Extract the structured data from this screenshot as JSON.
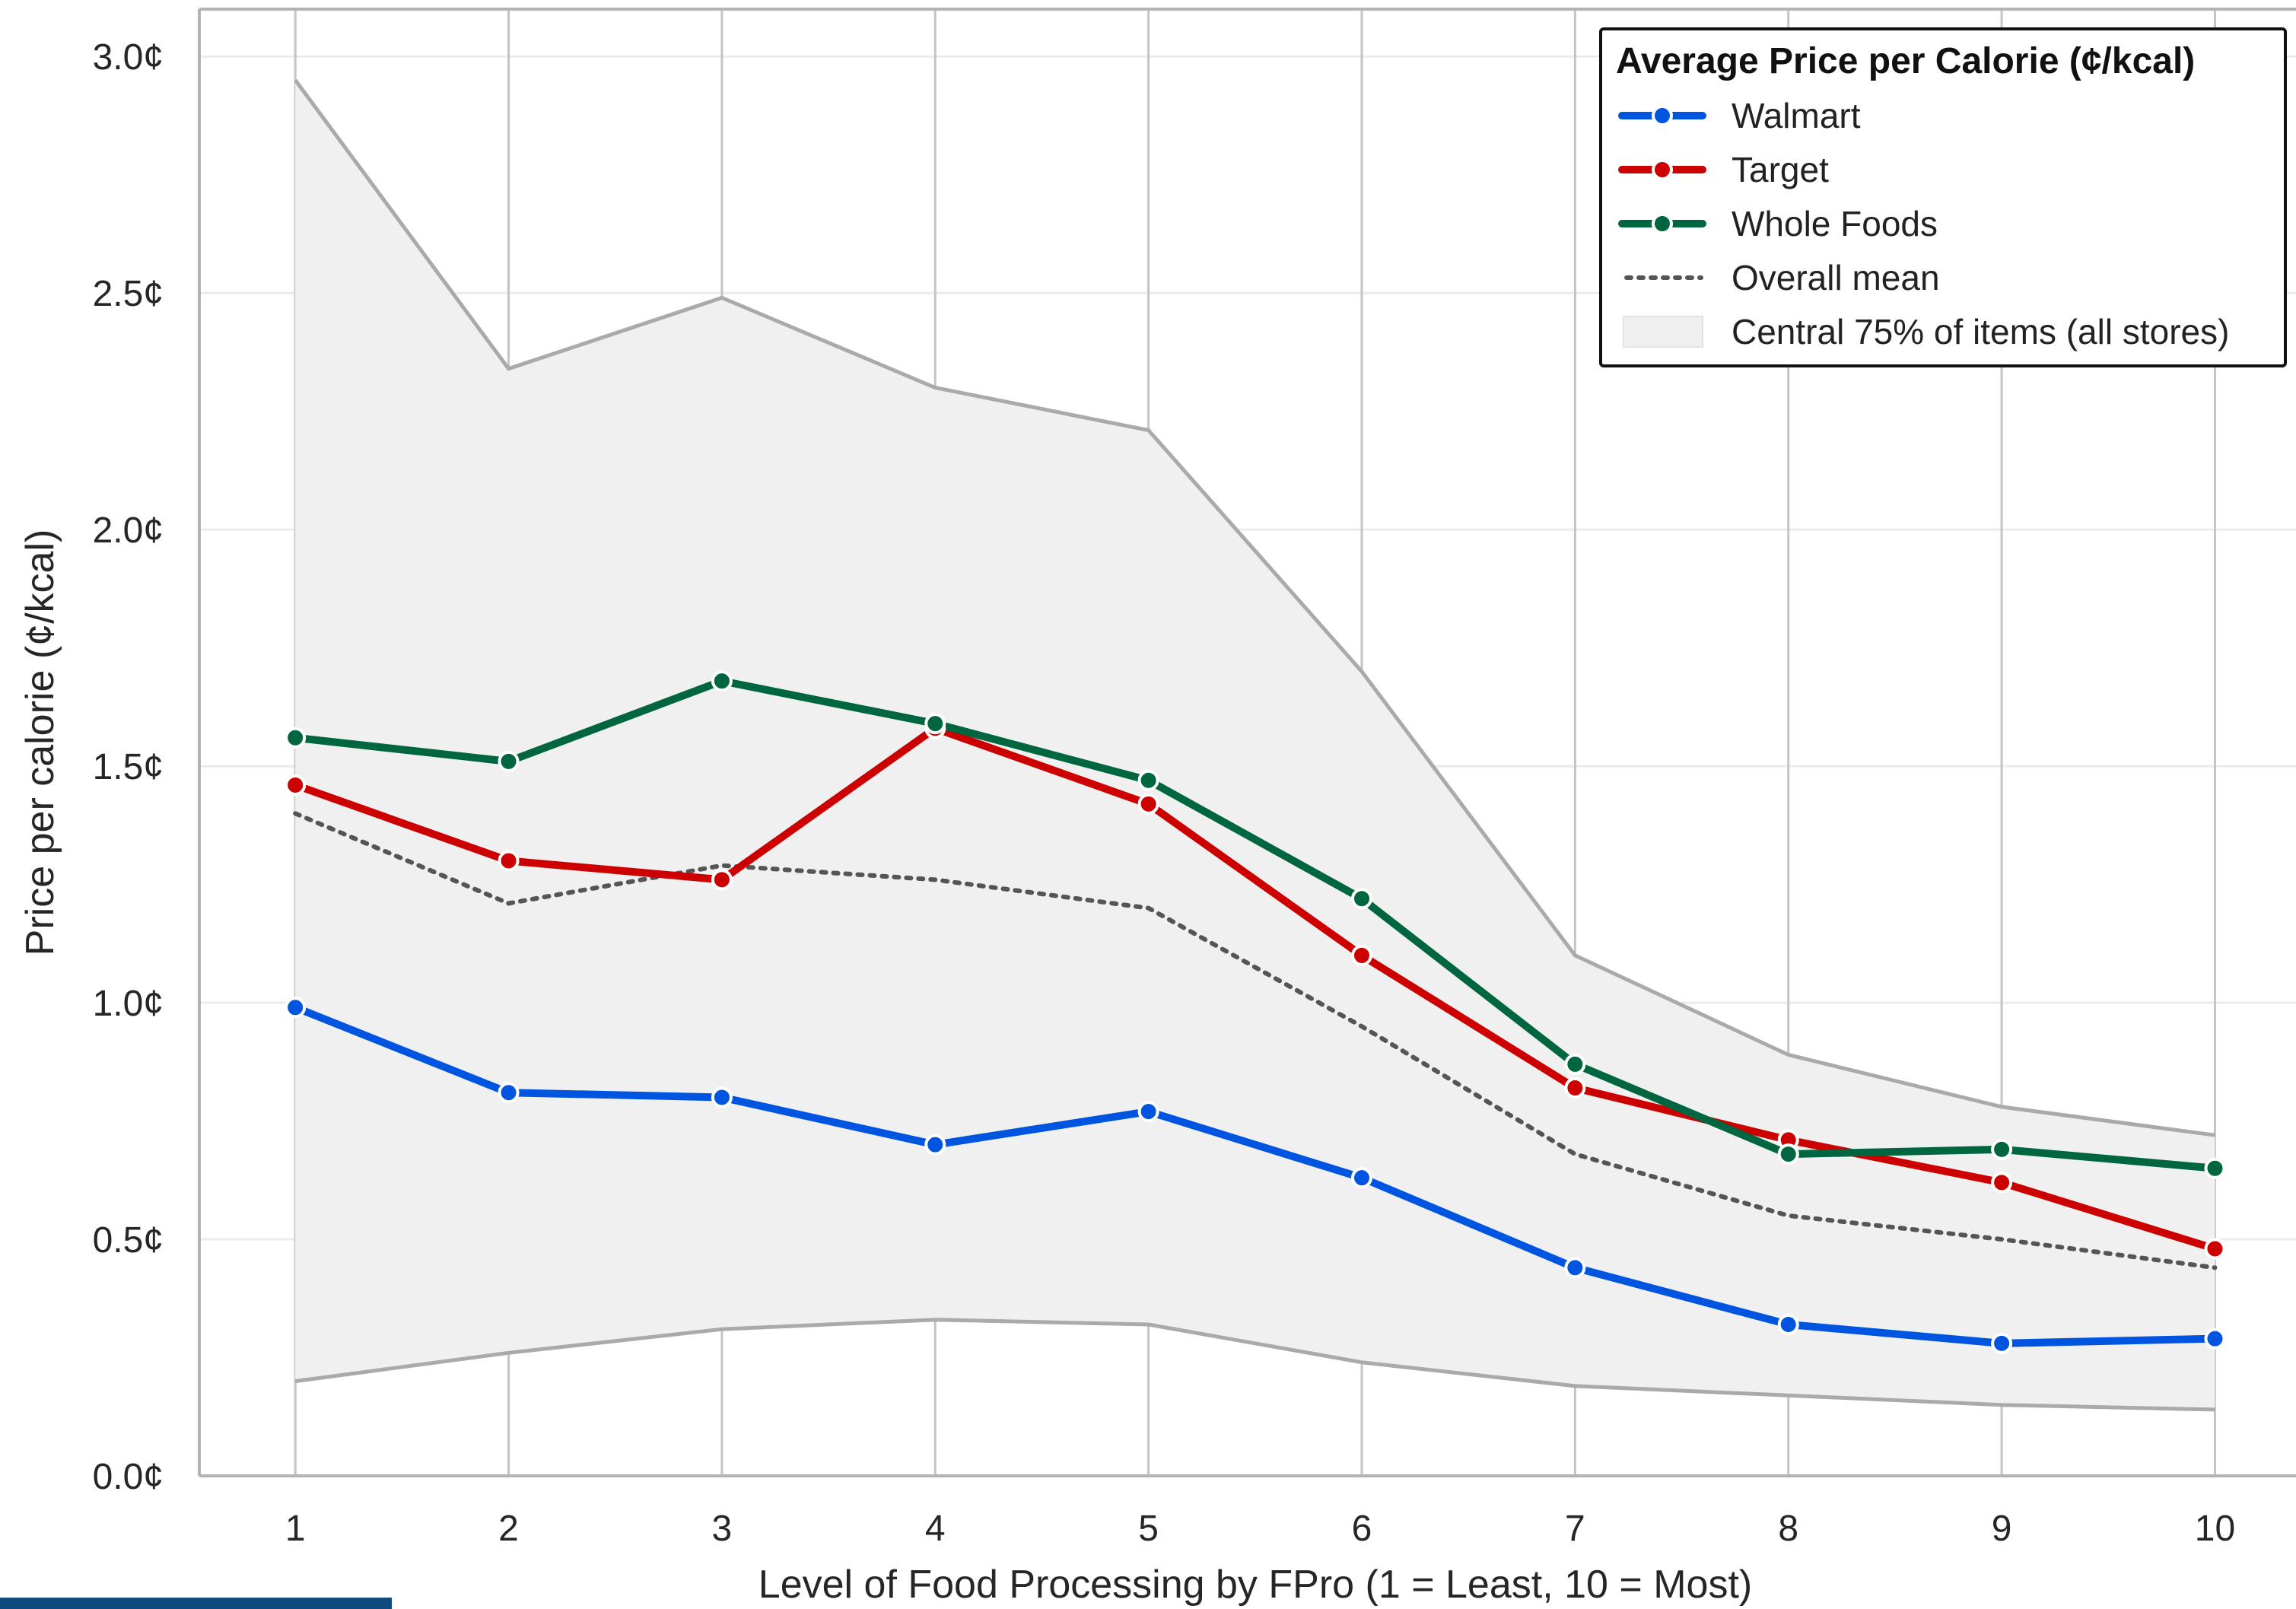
{
  "chart_data": {
    "type": "line",
    "title": "",
    "xlabel": "Level of Food Processing by FPro (1 = Least, 10 = Most)",
    "ylabel": "Price per calorie (¢/kcal)",
    "x": [
      1,
      2,
      3,
      4,
      5,
      6,
      7,
      8,
      9,
      10
    ],
    "xticks": [
      "1",
      "2",
      "3",
      "4",
      "5",
      "6",
      "7",
      "8",
      "9",
      "10"
    ],
    "ylim": [
      0,
      3.1
    ],
    "xlim": [
      0.55,
      10.38
    ],
    "yticks": [
      0,
      0.5,
      1.0,
      1.5,
      2.0,
      2.5,
      3.0
    ],
    "ytick_labels": [
      "0.0¢",
      "0.5¢",
      "1.0¢",
      "1.5¢",
      "2.0¢",
      "2.5¢",
      "3.0¢"
    ],
    "grid": true,
    "legend": {
      "title": "Average Price per Calorie (¢/kcal)",
      "placement": "top-right"
    },
    "series": [
      {
        "name": "Walmart",
        "color": "#0055e0",
        "style": "solid-markers",
        "values": [
          0.99,
          0.81,
          0.8,
          0.7,
          0.77,
          0.63,
          0.44,
          0.32,
          0.28,
          0.29
        ]
      },
      {
        "name": "Target",
        "color": "#cc0000",
        "style": "solid-markers",
        "values": [
          1.46,
          1.3,
          1.26,
          1.58,
          1.42,
          1.1,
          0.82,
          0.71,
          0.62,
          0.48
        ]
      },
      {
        "name": "Whole Foods",
        "color": "#006640",
        "style": "solid-markers",
        "values": [
          1.56,
          1.51,
          1.68,
          1.59,
          1.47,
          1.22,
          0.87,
          0.68,
          0.69,
          0.65
        ]
      },
      {
        "name": "Overall mean",
        "color": "#555555",
        "style": "dotted",
        "values": [
          1.4,
          1.21,
          1.29,
          1.26,
          1.2,
          0.95,
          0.68,
          0.55,
          0.5,
          0.44
        ]
      }
    ],
    "band": {
      "name": "Central 75% of items (all stores)",
      "color": "#f0f0f0",
      "edge_color": "#aaaaaa",
      "lower": [
        0.2,
        0.26,
        0.31,
        0.33,
        0.32,
        0.24,
        0.19,
        0.17,
        0.15,
        0.14
      ],
      "upper": [
        2.95,
        2.34,
        2.49,
        2.3,
        2.21,
        1.7,
        1.1,
        0.89,
        0.78,
        0.72
      ]
    }
  }
}
